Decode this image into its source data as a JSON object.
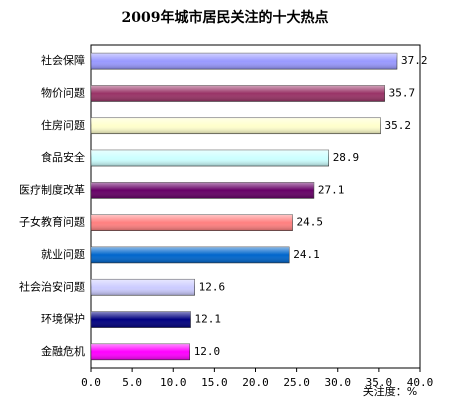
{
  "chart_data": {
    "type": "bar",
    "orientation": "horizontal",
    "title": "2009年城市居民关注的十大热点",
    "x_label": "关注度：%",
    "categories": [
      "社会保障",
      "物价问题",
      "住房问题",
      "食品安全",
      "医疗制度改革",
      "子女教育问题",
      "就业问题",
      "社会治安问题",
      "环境保护",
      "金融危机"
    ],
    "values": [
      37.2,
      35.7,
      35.2,
      28.9,
      27.1,
      24.5,
      24.1,
      12.6,
      12.1,
      12.0
    ],
    "value_labels": [
      "37.2",
      "35.7",
      "35.2",
      "28.9",
      "27.1",
      "24.5",
      "24.1",
      "12.6",
      "12.1",
      "12.0"
    ],
    "colors": [
      "#9999ff",
      "#993366",
      "#ffffcc",
      "#ccffff",
      "#660066",
      "#ff8080",
      "#0066cc",
      "#ccccff",
      "#000080",
      "#ff00ff"
    ],
    "xlim": [
      0,
      40
    ],
    "xticks": [
      {
        "value": 0,
        "label": "0.0"
      },
      {
        "value": 5,
        "label": "5.0"
      },
      {
        "value": 10,
        "label": "10.0"
      },
      {
        "value": 15,
        "label": "15.0"
      },
      {
        "value": 20,
        "label": "20.0"
      },
      {
        "value": 25,
        "label": "25.0"
      },
      {
        "value": 30,
        "label": "30.0"
      },
      {
        "value": 35,
        "label": "35.0"
      },
      {
        "value": 40,
        "label": "40.0"
      }
    ]
  }
}
